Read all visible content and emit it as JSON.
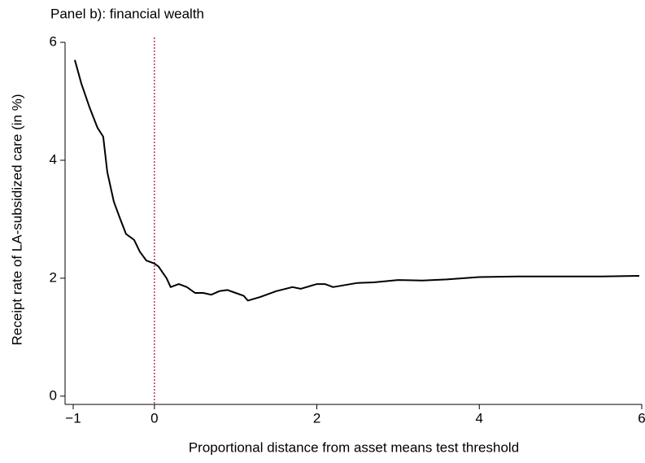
{
  "chart_data": {
    "type": "line",
    "title": "Panel b): financial wealth",
    "x_label": "Proportional distance from asset means test threshold",
    "y_label": "Receipt rate of LA-subsidized care (in %)",
    "xlim": [
      -1.1,
      6
    ],
    "ylim": [
      -0.14,
      6
    ],
    "xticks": [
      {
        "value": -1,
        "label": "−1"
      },
      0,
      2,
      4,
      6
    ],
    "yticks": [
      0,
      2,
      4,
      6
    ],
    "vline": {
      "x": 0,
      "color": "#c0305a"
    },
    "series": [
      {
        "color": "#000000",
        "x": [
          -0.98,
          -0.9,
          -0.8,
          -0.7,
          -0.63,
          -0.58,
          -0.5,
          -0.42,
          -0.35,
          -0.25,
          -0.18,
          -0.1,
          0,
          0.05,
          0.1,
          0.15,
          0.2,
          0.3,
          0.4,
          0.5,
          0.6,
          0.7,
          0.8,
          0.9,
          1.0,
          1.1,
          1.15,
          1.3,
          1.5,
          1.7,
          1.8,
          2.0,
          2.1,
          2.2,
          2.5,
          2.7,
          3.0,
          3.3,
          3.6,
          4.0,
          4.5,
          5.0,
          5.5,
          5.97
        ],
        "values": [
          5.7,
          5.3,
          4.9,
          4.55,
          4.4,
          3.8,
          3.3,
          3.0,
          2.75,
          2.65,
          2.45,
          2.3,
          2.25,
          2.2,
          2.1,
          2.0,
          1.85,
          1.9,
          1.85,
          1.75,
          1.75,
          1.72,
          1.78,
          1.8,
          1.75,
          1.7,
          1.62,
          1.68,
          1.78,
          1.85,
          1.82,
          1.9,
          1.9,
          1.85,
          1.92,
          1.93,
          1.97,
          1.96,
          1.98,
          2.02,
          2.03,
          2.03,
          2.03,
          2.04
        ]
      }
    ]
  }
}
